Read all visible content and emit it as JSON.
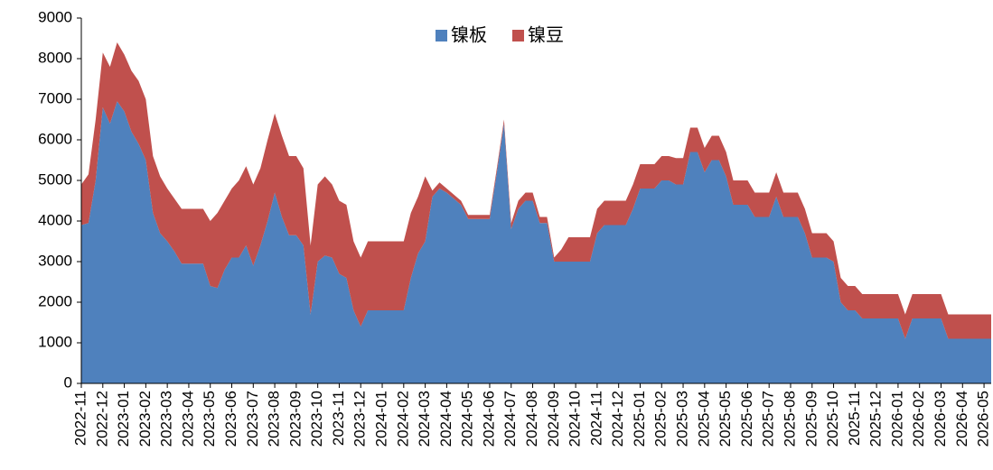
{
  "chart_data": {
    "type": "stacked_area",
    "categories": [
      "2022-11",
      null,
      null,
      "2022-12",
      null,
      null,
      "2023-01",
      null,
      null,
      "2023-02",
      null,
      null,
      "2023-03",
      null,
      null,
      "2023-04",
      null,
      null,
      "2023-05",
      null,
      null,
      "2023-06",
      null,
      null,
      "2023-07",
      null,
      null,
      "2023-08",
      null,
      null,
      "2023-09",
      null,
      null,
      "2023-10",
      null,
      null,
      "2023-11",
      null,
      null,
      "2023-12",
      null,
      null,
      "2024-01",
      null,
      null,
      "2024-02",
      null,
      null,
      "2024-03",
      null,
      null,
      "2024-04",
      null,
      null,
      "2024-05",
      null,
      null,
      "2024-06",
      null,
      null,
      "2024-07",
      null,
      null,
      "2024-08",
      null,
      null,
      "2024-09",
      null,
      null,
      "2024-10",
      null,
      null,
      "2024-11",
      null,
      null,
      "2024-12",
      null,
      null,
      "2025-01",
      null,
      null,
      "2025-02",
      null,
      null,
      "2025-03",
      null,
      null,
      "2025-04",
      null,
      null,
      "2025-05",
      null,
      null,
      "2025-06",
      null,
      null,
      "2025-07",
      null,
      null,
      "2025-08",
      null,
      null,
      "2025-09",
      null,
      null,
      "2025-10",
      null,
      null,
      "2025-11",
      null,
      null,
      "2025-12",
      null,
      null,
      "2026-01",
      null,
      null,
      "2026-02",
      null,
      null,
      "2026-03",
      null,
      null,
      "2026-04",
      null,
      null,
      "2026-05",
      null
    ],
    "series": [
      {
        "name": "镍板",
        "color": "#4f81bd",
        "values": [
          3900,
          3950,
          5000,
          6800,
          6400,
          6950,
          6700,
          6200,
          5900,
          5500,
          4200,
          3700,
          3500,
          3250,
          2950,
          2950,
          2950,
          2950,
          2400,
          2350,
          2800,
          3100,
          3100,
          3400,
          2900,
          3400,
          4000,
          4700,
          4100,
          3650,
          3650,
          3400,
          1700,
          3000,
          3150,
          3100,
          2700,
          2600,
          1800,
          1400,
          1800,
          1800,
          1800,
          1800,
          1800,
          1800,
          2600,
          3200,
          3500,
          4600,
          4800,
          4700,
          4550,
          4400,
          4050,
          4050,
          4050,
          4050,
          5200,
          6400,
          3800,
          4300,
          4500,
          4500,
          3950,
          3950,
          3000,
          3000,
          3000,
          3000,
          3000,
          3000,
          3700,
          3900,
          3900,
          3900,
          3900,
          4300,
          4800,
          4800,
          4800,
          5000,
          5000,
          4900,
          4900,
          5700,
          5700,
          5200,
          5500,
          5500,
          5100,
          4400,
          4400,
          4400,
          4100,
          4100,
          4100,
          4600,
          4100,
          4100,
          4100,
          3700,
          3100,
          3100,
          3100,
          3000,
          2000,
          1800,
          1800,
          1600,
          1600,
          1600,
          1600,
          1600,
          1600,
          1100,
          1600,
          1600,
          1600,
          1600,
          1600,
          1100,
          1100,
          1100,
          1100,
          1100,
          1100,
          1100
        ]
      },
      {
        "name": "镍豆",
        "color": "#c0504d",
        "values": [
          1000,
          1200,
          1500,
          1350,
          1400,
          1450,
          1400,
          1500,
          1550,
          1500,
          1400,
          1400,
          1300,
          1300,
          1350,
          1350,
          1350,
          1350,
          1600,
          1850,
          1700,
          1700,
          1900,
          1950,
          2000,
          1900,
          2000,
          1950,
          2000,
          1950,
          1950,
          1900,
          1700,
          1900,
          1950,
          1800,
          1800,
          1800,
          1700,
          1700,
          1700,
          1700,
          1700,
          1700,
          1700,
          1700,
          1600,
          1400,
          1600,
          150,
          150,
          100,
          100,
          100,
          100,
          100,
          100,
          100,
          100,
          100,
          150,
          200,
          200,
          200,
          150,
          150,
          100,
          300,
          600,
          600,
          600,
          600,
          600,
          600,
          600,
          600,
          600,
          600,
          600,
          600,
          600,
          600,
          600,
          650,
          650,
          600,
          600,
          600,
          600,
          600,
          600,
          600,
          600,
          600,
          600,
          600,
          600,
          600,
          600,
          600,
          600,
          600,
          600,
          600,
          600,
          500,
          600,
          600,
          600,
          600,
          600,
          600,
          600,
          600,
          600,
          600,
          600,
          600,
          600,
          600,
          600,
          600,
          600,
          600,
          600,
          600,
          600,
          600
        ]
      }
    ],
    "ylim": [
      0,
      9000
    ],
    "yticks": [
      0,
      1000,
      2000,
      3000,
      4000,
      5000,
      6000,
      7000,
      8000,
      9000
    ],
    "legend": "top"
  }
}
